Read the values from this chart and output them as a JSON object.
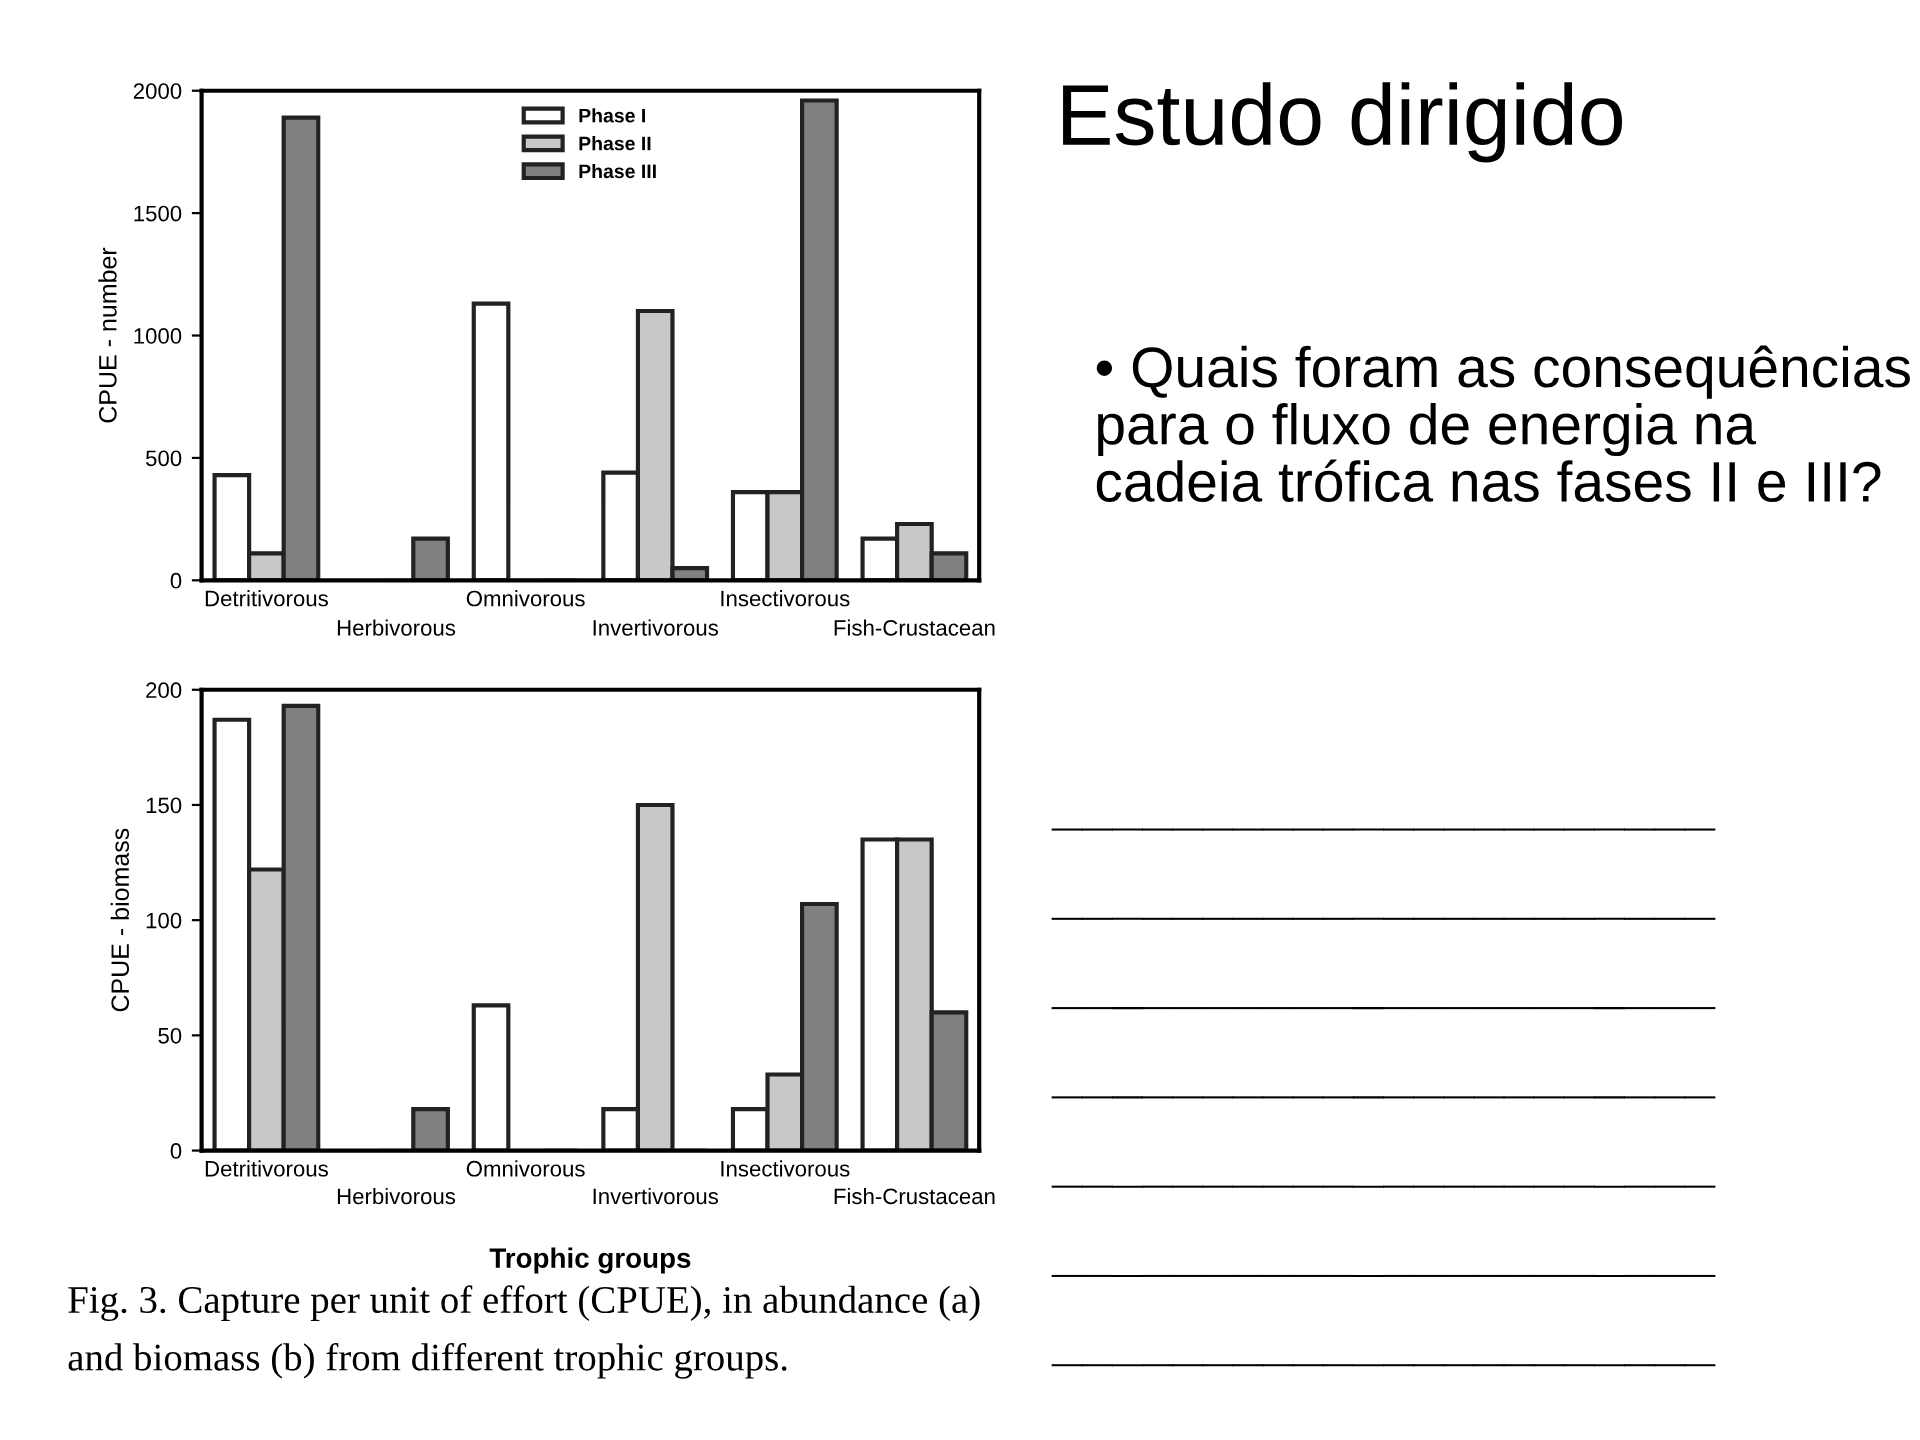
{
  "chart_data": [
    {
      "type": "bar",
      "ylabel": "CPUE - number",
      "categories": [
        "Detritivorous",
        "Herbivorous",
        "Omnivorous",
        "Invertivorous",
        "Insectivorous",
        "Fish-Crustacean"
      ],
      "series": [
        {
          "name": "Phase I",
          "color": "#ffffff",
          "values": [
            430,
            0,
            1130,
            440,
            360,
            170
          ]
        },
        {
          "name": "Phase II",
          "color": "#c8c8c8",
          "values": [
            110,
            0,
            0,
            1100,
            360,
            230
          ]
        },
        {
          "name": "Phase III",
          "color": "#808080",
          "values": [
            1890,
            170,
            0,
            50,
            1960,
            110
          ]
        }
      ],
      "ylim": [
        0,
        2000
      ],
      "yticks": [
        0,
        500,
        1000,
        1500,
        2000
      ],
      "legend": "top",
      "grid": false
    },
    {
      "type": "bar",
      "ylabel": "CPUE - biomass",
      "xlabel": "Trophic groups",
      "categories": [
        "Detritivorous",
        "Herbivorous",
        "Omnivorous",
        "Invertivorous",
        "Insectivorous",
        "Fish-Crustacean"
      ],
      "series": [
        {
          "color": "#ffffff",
          "values": [
            187,
            0,
            63,
            18,
            18,
            135
          ]
        },
        {
          "color": "#c8c8c8",
          "values": [
            122,
            0,
            0,
            150,
            33,
            135
          ]
        },
        {
          "color": "#808080",
          "values": [
            193,
            18,
            0,
            0,
            107,
            60
          ]
        }
      ],
      "ylim": [
        0,
        200
      ],
      "yticks": [
        0,
        50,
        100,
        150,
        200
      ],
      "grid": false,
      "annotations": [
        "Fig. 3. Capture per unit of effort (CPUE), in abundance (a)",
        "and biomass (b) from different trophic groups."
      ]
    },
    {
      "type": "other",
      "title": "Estudo dirigido",
      "annotations": [
        "• Quais foram as consequências para o fluxo de energia na cadeia trófica nas fases II e III?",
        "______________________",
        "______________________",
        "______________________",
        "______________________",
        "______________________",
        "______________________",
        "______________________"
      ]
    }
  ]
}
